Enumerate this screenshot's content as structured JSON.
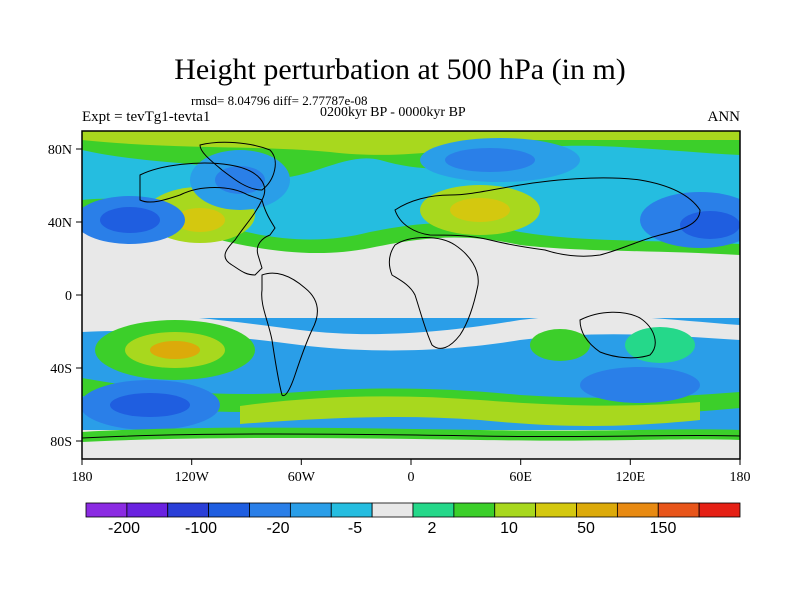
{
  "map": {
    "title": "Height perturbation at 500 hPa (in m)",
    "stats": "rmsd= 8.04796  diff= 2.77787e-08",
    "period": "0200kyr BP - 0000kyr BP",
    "experiment": "Expt = tevTg1-tevta1",
    "season": "ANN",
    "lon_ticks": [
      "180",
      "120W",
      "60W",
      "0",
      "60E",
      "120E",
      "180"
    ],
    "lat_ticks": [
      "80N",
      "40N",
      "0",
      "40S",
      "80S"
    ]
  },
  "colorbar": {
    "colors": [
      "#8b2be2",
      "#6a22e0",
      "#2a3fd8",
      "#1f5ee0",
      "#2a7fe8",
      "#2a9ee8",
      "#25bde0",
      "#e8e8e8",
      "#25d88a",
      "#3ccf2a",
      "#a8d81e",
      "#d4c80f",
      "#dcaa0a",
      "#e88a12",
      "#e8551a",
      "#e52015"
    ],
    "labels": [
      "-200",
      "-100",
      "-20",
      "-5",
      "2",
      "10",
      "50",
      "150"
    ]
  },
  "palette": {
    "neutral": "#e8e8e8",
    "light_blue": "#25bde0",
    "mid_blue": "#2a9ee8",
    "blue": "#2a7fe8",
    "dark_blue": "#1f5ee0",
    "teal": "#25d88a",
    "green": "#3ccf2a",
    "yellow_green": "#a8d81e",
    "yellow": "#d4c80f",
    "orange": "#e88a12"
  }
}
